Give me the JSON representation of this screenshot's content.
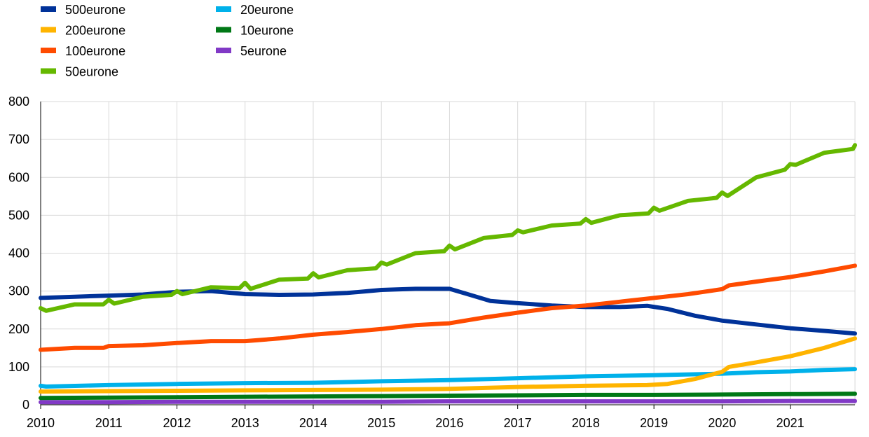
{
  "chart_data": {
    "type": "line",
    "ylim": [
      0,
      800
    ],
    "xlim": [
      2010,
      2021.95
    ],
    "y_ticks": [
      "0",
      "100",
      "200",
      "300",
      "400",
      "500",
      "600",
      "700",
      "800"
    ],
    "x_ticks": [
      "2010",
      "2011",
      "2012",
      "2013",
      "2014",
      "2015",
      "2016",
      "2017",
      "2018",
      "2019",
      "2020",
      "2021"
    ],
    "grid": true,
    "legend_position": "top-left",
    "series": [
      {
        "name": "500eurone",
        "color": "#003299",
        "points": [
          [
            2010.0,
            282
          ],
          [
            2010.5,
            285
          ],
          [
            2011.0,
            288
          ],
          [
            2011.5,
            291
          ],
          [
            2012.0,
            298
          ],
          [
            2012.5,
            300
          ],
          [
            2013.0,
            292
          ],
          [
            2013.5,
            290
          ],
          [
            2014.0,
            291
          ],
          [
            2014.5,
            295
          ],
          [
            2015.0,
            303
          ],
          [
            2015.5,
            306
          ],
          [
            2016.0,
            306
          ],
          [
            2016.3,
            290
          ],
          [
            2016.6,
            274
          ],
          [
            2017.0,
            268
          ],
          [
            2017.5,
            262
          ],
          [
            2018.0,
            258
          ],
          [
            2018.5,
            258
          ],
          [
            2018.9,
            261
          ],
          [
            2019.2,
            253
          ],
          [
            2019.6,
            235
          ],
          [
            2020.0,
            222
          ],
          [
            2020.5,
            212
          ],
          [
            2021.0,
            202
          ],
          [
            2021.5,
            195
          ],
          [
            2021.95,
            188
          ]
        ]
      },
      {
        "name": "200eurone",
        "color": "#FFB400",
        "points": [
          [
            2010.0,
            35
          ],
          [
            2011.0,
            36
          ],
          [
            2012.0,
            37
          ],
          [
            2013.0,
            38
          ],
          [
            2014.0,
            39
          ],
          [
            2015.0,
            40
          ],
          [
            2016.0,
            42
          ],
          [
            2017.0,
            47
          ],
          [
            2018.0,
            50
          ],
          [
            2018.9,
            52
          ],
          [
            2019.2,
            55
          ],
          [
            2019.6,
            68
          ],
          [
            2020.0,
            87
          ],
          [
            2020.1,
            100
          ],
          [
            2020.5,
            112
          ],
          [
            2021.0,
            128
          ],
          [
            2021.5,
            150
          ],
          [
            2021.95,
            175
          ]
        ]
      },
      {
        "name": "100eurone",
        "color": "#FF4B00",
        "points": [
          [
            2010.0,
            145
          ],
          [
            2010.5,
            150
          ],
          [
            2010.92,
            150
          ],
          [
            2011.0,
            155
          ],
          [
            2011.5,
            157
          ],
          [
            2012.0,
            163
          ],
          [
            2012.5,
            168
          ],
          [
            2013.0,
            168
          ],
          [
            2013.5,
            175
          ],
          [
            2014.0,
            185
          ],
          [
            2014.5,
            192
          ],
          [
            2015.0,
            200
          ],
          [
            2015.5,
            210
          ],
          [
            2016.0,
            215
          ],
          [
            2016.5,
            230
          ],
          [
            2017.0,
            243
          ],
          [
            2017.5,
            255
          ],
          [
            2018.0,
            262
          ],
          [
            2018.5,
            272
          ],
          [
            2018.9,
            280
          ],
          [
            2019.5,
            292
          ],
          [
            2020.0,
            305
          ],
          [
            2020.1,
            315
          ],
          [
            2020.5,
            325
          ],
          [
            2021.0,
            337
          ],
          [
            2021.5,
            352
          ],
          [
            2021.95,
            367
          ]
        ]
      },
      {
        "name": "50eurone",
        "color": "#65B800",
        "points": [
          [
            2010.0,
            255
          ],
          [
            2010.08,
            248
          ],
          [
            2010.5,
            265
          ],
          [
            2010.92,
            265
          ],
          [
            2011.0,
            277
          ],
          [
            2011.08,
            267
          ],
          [
            2011.5,
            285
          ],
          [
            2011.92,
            290
          ],
          [
            2012.0,
            300
          ],
          [
            2012.08,
            292
          ],
          [
            2012.5,
            310
          ],
          [
            2012.92,
            308
          ],
          [
            2013.0,
            322
          ],
          [
            2013.08,
            306
          ],
          [
            2013.5,
            330
          ],
          [
            2013.92,
            333
          ],
          [
            2014.0,
            347
          ],
          [
            2014.08,
            336
          ],
          [
            2014.5,
            355
          ],
          [
            2014.92,
            360
          ],
          [
            2015.0,
            375
          ],
          [
            2015.08,
            370
          ],
          [
            2015.5,
            400
          ],
          [
            2015.92,
            405
          ],
          [
            2016.0,
            420
          ],
          [
            2016.08,
            410
          ],
          [
            2016.5,
            440
          ],
          [
            2016.92,
            448
          ],
          [
            2017.0,
            460
          ],
          [
            2017.08,
            455
          ],
          [
            2017.5,
            473
          ],
          [
            2017.92,
            478
          ],
          [
            2018.0,
            490
          ],
          [
            2018.08,
            480
          ],
          [
            2018.5,
            500
          ],
          [
            2018.92,
            505
          ],
          [
            2019.0,
            520
          ],
          [
            2019.08,
            512
          ],
          [
            2019.5,
            538
          ],
          [
            2019.92,
            546
          ],
          [
            2020.0,
            560
          ],
          [
            2020.08,
            551
          ],
          [
            2020.5,
            600
          ],
          [
            2020.92,
            620
          ],
          [
            2021.0,
            635
          ],
          [
            2021.08,
            633
          ],
          [
            2021.5,
            665
          ],
          [
            2021.92,
            675
          ],
          [
            2021.95,
            685
          ]
        ]
      },
      {
        "name": "20eurone",
        "color": "#00B1EA",
        "points": [
          [
            2010.0,
            50
          ],
          [
            2010.08,
            48
          ],
          [
            2011.0,
            52
          ],
          [
            2012.0,
            55
          ],
          [
            2013.0,
            57
          ],
          [
            2014.0,
            58
          ],
          [
            2015.0,
            62
          ],
          [
            2016.0,
            65
          ],
          [
            2017.0,
            70
          ],
          [
            2018.0,
            75
          ],
          [
            2019.0,
            78
          ],
          [
            2020.0,
            82
          ],
          [
            2020.5,
            86
          ],
          [
            2021.0,
            88
          ],
          [
            2021.5,
            92
          ],
          [
            2021.95,
            94
          ]
        ]
      },
      {
        "name": "10eurone",
        "color": "#007816",
        "points": [
          [
            2010.0,
            18
          ],
          [
            2011.0,
            19
          ],
          [
            2012.0,
            20
          ],
          [
            2013.0,
            21
          ],
          [
            2014.0,
            22
          ],
          [
            2015.0,
            23
          ],
          [
            2016.0,
            24
          ],
          [
            2017.0,
            25
          ],
          [
            2018.0,
            26
          ],
          [
            2019.0,
            26
          ],
          [
            2020.0,
            27
          ],
          [
            2021.0,
            28
          ],
          [
            2021.95,
            29
          ]
        ]
      },
      {
        "name": "5eurone",
        "color": "#8139C6",
        "points": [
          [
            2010.0,
            7
          ],
          [
            2011.0,
            7
          ],
          [
            2012.0,
            8
          ],
          [
            2013.0,
            8
          ],
          [
            2014.0,
            8
          ],
          [
            2015.0,
            8
          ],
          [
            2016.0,
            9
          ],
          [
            2017.0,
            9
          ],
          [
            2018.0,
            9
          ],
          [
            2019.0,
            9
          ],
          [
            2020.0,
            9
          ],
          [
            2021.0,
            10
          ],
          [
            2021.95,
            10
          ]
        ]
      }
    ]
  }
}
